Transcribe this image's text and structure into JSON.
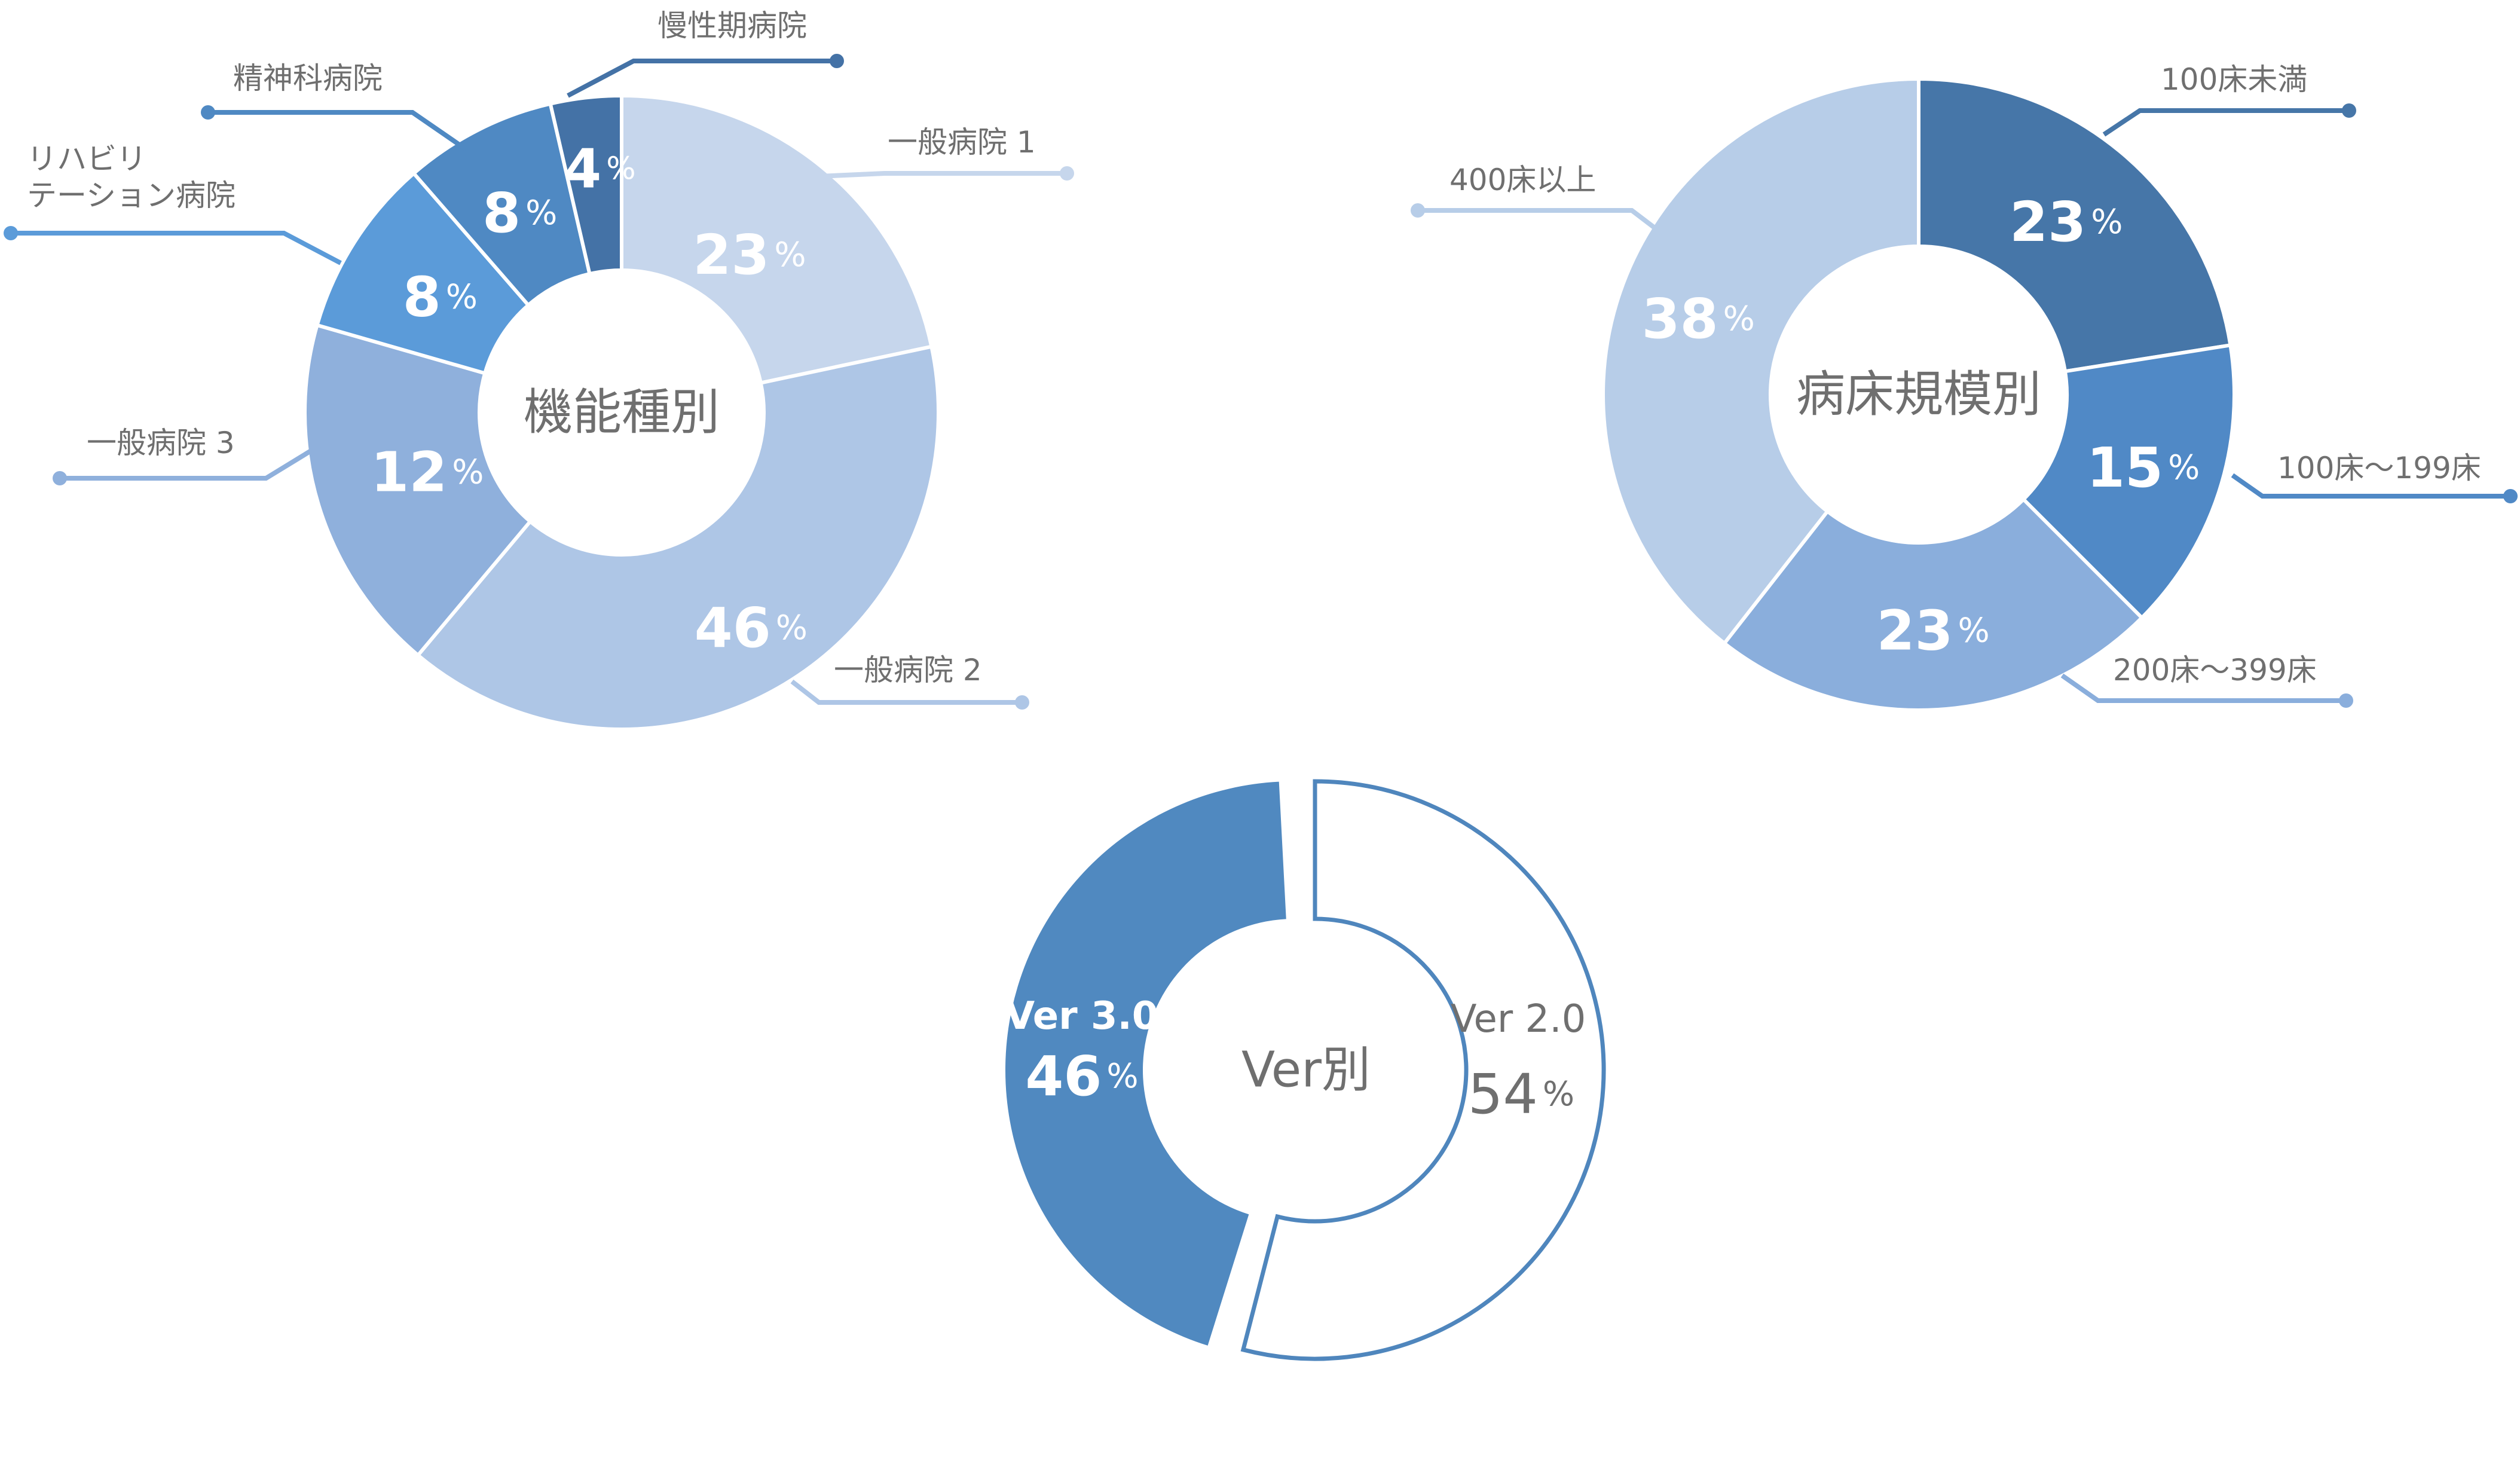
{
  "chart_data": [
    {
      "type": "pie",
      "title": "機能種別",
      "percent_symbol": "%",
      "categories": [
        "一般病院１",
        "一般病院２",
        "一般病院３",
        "リハビリテーション病院",
        "精神科病院",
        "慢性期病院"
      ],
      "label_lines": [
        [
          "一般病院 1"
        ],
        [
          "一般病院 2"
        ],
        [
          "一般病院 3"
        ],
        [
          "リハビリ",
          "テーション病院"
        ],
        [
          "精神科病院"
        ],
        [
          "慢性期病院"
        ]
      ],
      "values": [
        23,
        46,
        12,
        8,
        8,
        4
      ],
      "colors": [
        "#c6d6ec",
        "#aec6e6",
        "#8fb0dc",
        "#5b9bd9",
        "#4f89c3",
        "#4472a6"
      ],
      "legend": "callouts"
    },
    {
      "type": "pie",
      "title": "病床規模別",
      "percent_symbol": "%",
      "categories": [
        "100床未満",
        "100床～199床",
        "200床～399床",
        "400床以上"
      ],
      "label_lines": [
        [
          "100床未満"
        ],
        [
          "100床～199床"
        ],
        [
          "200床～399床"
        ],
        [
          "400床以上"
        ]
      ],
      "values": [
        23,
        15,
        23,
        38
      ],
      "colors": [
        "#4676a8",
        "#5089c6",
        "#8aaedc",
        "#b7cde8"
      ],
      "legend": "callouts"
    },
    {
      "type": "pie",
      "title": "Ver別",
      "percent_symbol": "%",
      "categories": [
        "Ver 3.0",
        "Ver 2.0"
      ],
      "values": [
        46,
        54
      ],
      "colors": [
        "#5089c0",
        "#ffffff"
      ],
      "outline_color": "#4f86bd",
      "legend": "inside"
    }
  ]
}
